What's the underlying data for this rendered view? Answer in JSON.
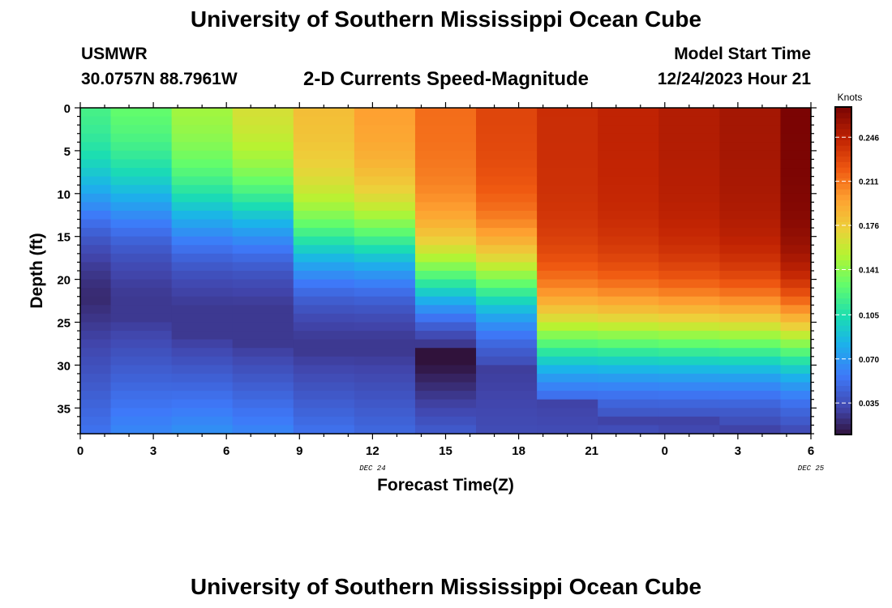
{
  "header": {
    "title": "University of Southern Mississippi Ocean Cube",
    "station": "USMWR",
    "coordinates": "30.0757N  88.7961W",
    "subtitle": "2-D Currents Speed-Magnitude",
    "model_start_label": "Model Start Time",
    "model_start_value": "12/24/2023 Hour 21"
  },
  "footer": {
    "title": "University of Southern Mississippi Ocean Cube"
  },
  "chart_data": {
    "type": "heatmap",
    "title": "2-D Currents Speed-Magnitude",
    "xlabel": "Forecast Time(Z)",
    "ylabel": "Depth (ft)",
    "x_tick_labels": [
      "0",
      "3",
      "6",
      "9",
      "12",
      "15",
      "18",
      "21",
      "0",
      "3",
      "6"
    ],
    "date_labels": [
      {
        "text": "DEC 24",
        "at_tick": 4
      },
      {
        "text": "DEC 25",
        "at_tick": 10
      }
    ],
    "x_units": "hours since 12/24/2023 00Z",
    "x_range": [
      0,
      30
    ],
    "y_tick_labels": [
      "0",
      "5",
      "10",
      "15",
      "20",
      "25",
      "30",
      "35"
    ],
    "y_range": [
      0,
      38
    ],
    "depth_levels": 38,
    "colorbar": {
      "label": "Knots",
      "ticks": [
        0.035,
        0.07,
        0.105,
        0.141,
        0.176,
        0.211,
        0.246
      ],
      "tick_labels": [
        "0.035",
        "0.070",
        "0.105",
        "0.141",
        "0.176",
        "0.211",
        "0.246"
      ],
      "range": [
        0.01,
        0.27
      ]
    },
    "series": [
      {
        "name": "t=00Z Dec 24",
        "x_start": 0,
        "x_end": 1.25,
        "surface": 0.125,
        "bottom": 0.055,
        "min_depth": 22,
        "min_speed": 0.02,
        "profile": "shallow"
      },
      {
        "name": "t=03Z Dec 24",
        "x_start": 1.25,
        "x_end": 3.75,
        "surface": 0.135,
        "bottom": 0.065,
        "min_depth": 24,
        "min_speed": 0.026,
        "profile": "shallow"
      },
      {
        "name": "t=06Z Dec 24",
        "x_start": 3.75,
        "x_end": 6.25,
        "surface": 0.152,
        "bottom": 0.07,
        "min_depth": 26,
        "min_speed": 0.026,
        "profile": "mid"
      },
      {
        "name": "t=09Z Dec 24",
        "x_start": 6.25,
        "x_end": 8.75,
        "surface": 0.17,
        "bottom": 0.065,
        "min_depth": 27,
        "min_speed": 0.026,
        "profile": "mid"
      },
      {
        "name": "t=12Z Dec 24",
        "x_start": 8.75,
        "x_end": 11.25,
        "surface": 0.185,
        "bottom": 0.055,
        "min_depth": 28,
        "min_speed": 0.026,
        "profile": "deep"
      },
      {
        "name": "t=15Z Dec 24",
        "x_start": 11.25,
        "x_end": 13.75,
        "surface": 0.2,
        "bottom": 0.05,
        "min_depth": 28,
        "min_speed": 0.026,
        "profile": "deep"
      },
      {
        "name": "t=18Z Dec 24",
        "x_start": 13.75,
        "x_end": 16.25,
        "surface": 0.215,
        "bottom": 0.045,
        "min_depth": 28,
        "min_speed": 0.005,
        "profile": "deeper"
      },
      {
        "name": "t=21Z Dec 24",
        "x_start": 16.25,
        "x_end": 18.75,
        "surface": 0.23,
        "bottom": 0.035,
        "min_depth": 30,
        "min_speed": 0.028,
        "profile": "deeper"
      },
      {
        "name": "t=00Z Dec 25",
        "x_start": 18.75,
        "x_end": 21.25,
        "surface": 0.24,
        "bottom": 0.035,
        "min_depth": 34,
        "min_speed": 0.03,
        "profile": "deepest"
      },
      {
        "name": "t=03Z Dec 25",
        "x_start": 21.25,
        "x_end": 23.75,
        "surface": 0.245,
        "bottom": 0.04,
        "min_depth": 36,
        "min_speed": 0.03,
        "profile": "deepest"
      },
      {
        "name": "t=06Z Dec 25",
        "x_start": 23.75,
        "x_end": 26.25,
        "surface": 0.25,
        "bottom": 0.035,
        "min_depth": 36,
        "min_speed": 0.03,
        "profile": "deepest"
      },
      {
        "name": "t=09Z Dec 25",
        "x_start": 26.25,
        "x_end": 28.75,
        "surface": 0.255,
        "bottom": 0.03,
        "min_depth": 37,
        "min_speed": 0.03,
        "profile": "deepest"
      },
      {
        "name": "t=12Z Dec 25",
        "x_start": 28.75,
        "x_end": 30,
        "surface": 0.27,
        "bottom": 0.04,
        "min_depth": 37,
        "min_speed": 0.035,
        "profile": "deepest"
      }
    ],
    "grid": false
  },
  "colors": {
    "background": "#ffffff",
    "axis": "#000000"
  }
}
